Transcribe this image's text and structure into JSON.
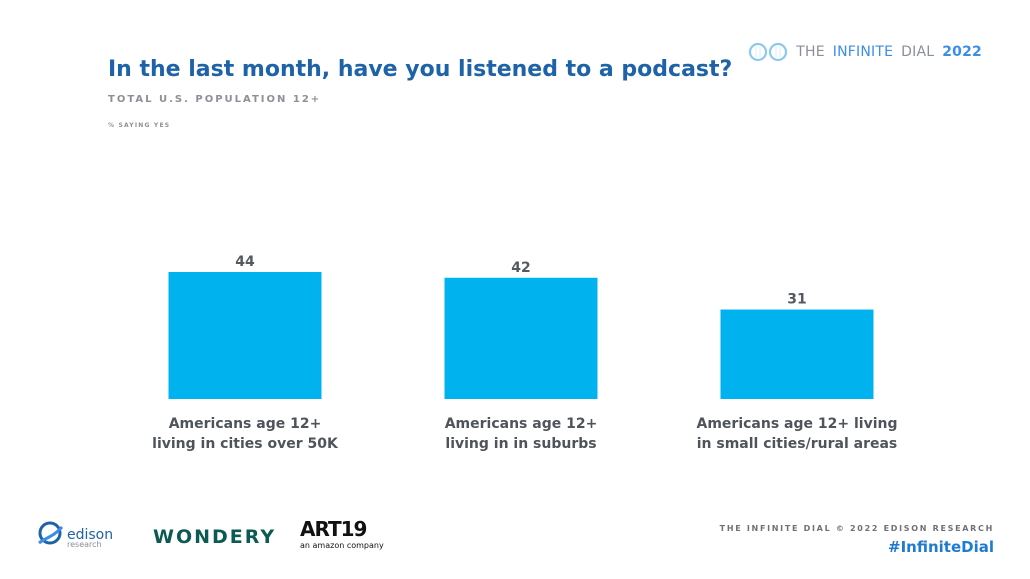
{
  "brand": {
    "prefix": "THE",
    "infinite": "INFINITE",
    "dial": "DIAL",
    "year": "2022",
    "icon": "infinity-logo-icon"
  },
  "chart_data": {
    "type": "bar",
    "title": "In the last month, have you listened to a podcast?",
    "subtitle": "TOTAL U.S. POPULATION 12+",
    "note": "% SAYING YES",
    "categories": [
      [
        "Americans age 12+",
        "living in cities over 50K"
      ],
      [
        "Americans age 12+",
        "living in in suburbs"
      ],
      [
        "Americans age 12+ living",
        "in small cities/rural areas"
      ]
    ],
    "values": [
      44,
      42,
      31
    ],
    "bar_color": "#00b3ef",
    "ylim": [
      0,
      44
    ],
    "grid": false,
    "legend": "none"
  },
  "footer": {
    "edison_word": "edison",
    "edison_sub": "research",
    "wondery": "WONDERY",
    "art19": "ART19",
    "art19_sub": "an amazon company",
    "copyright": "THE INFINITE DIAL  © 2022 EDISON RESEARCH",
    "hashtag": "#InfiniteDial"
  }
}
